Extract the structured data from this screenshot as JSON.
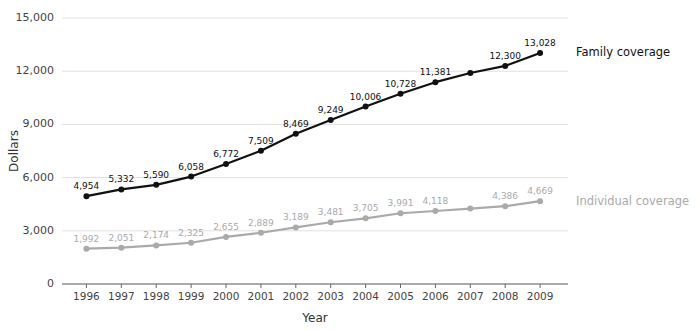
{
  "chart_data": {
    "type": "line",
    "xlabel": "Year",
    "ylabel": "Dollars",
    "x": [
      1996,
      1997,
      1998,
      1999,
      2000,
      2001,
      2002,
      2003,
      2004,
      2005,
      2006,
      2007,
      2008,
      2009
    ],
    "series": [
      {
        "name": "Family coverage",
        "color": "#111111",
        "marker": "circle",
        "values": [
          4954,
          5332,
          5590,
          6058,
          6772,
          7509,
          8469,
          9249,
          10006,
          10728,
          11381,
          11900,
          12300,
          13028
        ],
        "value_labels": [
          "4,954",
          "5,332",
          "5,590",
          "6,058",
          "6,772",
          "7,509",
          "8,469",
          "9,249",
          "10,006",
          "10,728",
          "11,381",
          null,
          "12,300",
          "13,028"
        ]
      },
      {
        "name": "Individual coverage",
        "color": "#aaaaaa",
        "marker": "circle",
        "values": [
          1992,
          2051,
          2174,
          2325,
          2655,
          2889,
          3189,
          3481,
          3705,
          3991,
          4118,
          4253,
          4386,
          4669
        ],
        "value_labels": [
          "1,992",
          "2,051",
          "2,174",
          "2,325",
          "2,655",
          "2,889",
          "3,189",
          "3,481",
          "3,705",
          "3,991",
          "4,118",
          null,
          "4,386",
          "4,669"
        ]
      }
    ],
    "xlim": [
      1995.3,
      2009.8
    ],
    "xticks": [
      1996,
      1997,
      1998,
      1999,
      2000,
      2001,
      2002,
      2003,
      2004,
      2005,
      2006,
      2007,
      2008,
      2009
    ],
    "ylim": [
      0,
      15000
    ],
    "yticks": [
      0,
      {
        "value": 3000,
        "label": "3,000"
      },
      {
        "value": 6000,
        "label": "6,000"
      },
      {
        "value": 9000,
        "label": "9,000"
      },
      {
        "value": 12000,
        "label": "12,000"
      },
      {
        "value": 15000,
        "label": "15,000"
      }
    ],
    "grid": true,
    "data_labels": true
  }
}
